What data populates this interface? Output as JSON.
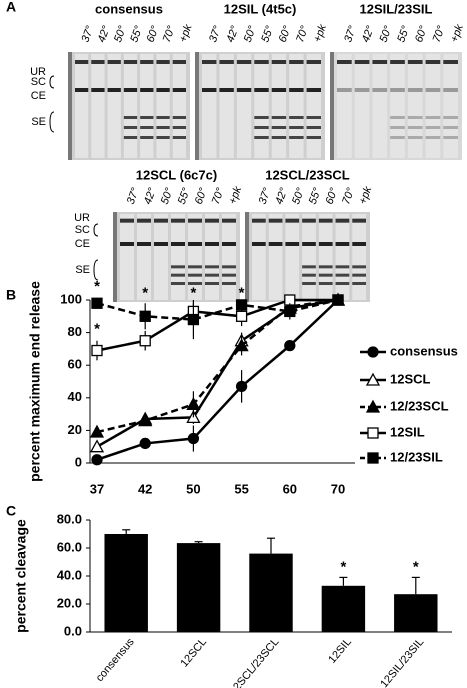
{
  "panel_labels": {
    "a": "A",
    "b": "B",
    "c": "C"
  },
  "gels": [
    {
      "title": "consensus",
      "lanes": [
        "37°",
        "42°",
        "50°",
        "55°",
        "60°",
        "70°",
        "+pk"
      ]
    },
    {
      "title": "12SIL (4t5c)",
      "lanes": [
        "37°",
        "42°",
        "50°",
        "55°",
        "60°",
        "70°",
        "+pk"
      ]
    },
    {
      "title": "12SIL/23SIL",
      "lanes": [
        "37°",
        "42°",
        "50°",
        "55°",
        "60°",
        "70°",
        "+pk"
      ]
    },
    {
      "title": "12SCL (6c7c)",
      "lanes": [
        "37°",
        "42°",
        "50°",
        "55°",
        "60°",
        "70°",
        "+pk"
      ]
    },
    {
      "title": "12SCL/23SCL",
      "lanes": [
        "37°",
        "42°",
        "50°",
        "55°",
        "60°",
        "70°",
        "+pk"
      ]
    }
  ],
  "row_labels": {
    "top": [
      "UR",
      "SC",
      "CE",
      "SE"
    ],
    "bottom": [
      "UR",
      "SC",
      "CE",
      "SE"
    ]
  },
  "chart_data": [
    {
      "type": "line",
      "ylabel": "percent maximum end release",
      "categories": [
        "37",
        "42",
        "50",
        "55",
        "60",
        "70"
      ],
      "ylim": [
        0,
        100
      ],
      "yticks": [
        0,
        20,
        40,
        60,
        80,
        100
      ],
      "series": [
        {
          "name": "consensus",
          "color": "#000000",
          "marker": "circle",
          "filled": true,
          "dashed": false,
          "values": [
            2,
            12,
            15,
            47,
            72,
            100
          ],
          "errors": [
            2,
            3,
            8,
            10,
            2,
            0
          ]
        },
        {
          "name": "12SCL",
          "color": "#000000",
          "marker": "triangle",
          "filled": false,
          "dashed": false,
          "values": [
            10,
            27,
            28,
            75,
            95,
            100
          ],
          "errors": [
            3,
            3,
            4,
            5,
            3,
            0
          ]
        },
        {
          "name": "12/23SCL",
          "color": "#000000",
          "marker": "triangle",
          "filled": true,
          "dashed": true,
          "values": [
            19,
            26,
            36,
            72,
            96,
            100
          ],
          "errors": [
            3,
            3,
            8,
            6,
            3,
            0
          ]
        },
        {
          "name": "12SIL",
          "color": "#000000",
          "marker": "square",
          "filled": false,
          "dashed": false,
          "values": [
            69,
            75,
            93,
            90,
            100,
            100
          ],
          "errors": [
            6,
            6,
            5,
            6,
            0,
            0
          ]
        },
        {
          "name": "12/23SIL",
          "color": "#000000",
          "marker": "square",
          "filled": true,
          "dashed": true,
          "values": [
            98,
            90,
            88,
            97,
            93,
            100
          ],
          "errors": [
            2,
            8,
            12,
            2,
            5,
            0
          ]
        }
      ],
      "annotations": [
        {
          "text": "*",
          "x": "37",
          "y": 108
        },
        {
          "text": "*",
          "x": "37",
          "y": 82
        },
        {
          "text": "*",
          "x": "42",
          "y": 104
        },
        {
          "text": "*",
          "x": "50",
          "y": 104
        },
        {
          "text": "*",
          "x": "55",
          "y": 104
        }
      ]
    },
    {
      "type": "bar",
      "ylabel": "percent cleavage",
      "color": "#000000",
      "categories": [
        "consensus",
        "12SCL",
        "12SCL/23SCL",
        "12SIL",
        "12SIL/23SIL"
      ],
      "values": [
        70,
        63.5,
        56,
        33,
        27
      ],
      "errors": [
        3,
        1,
        11,
        6,
        12
      ],
      "ylim": [
        0,
        80
      ],
      "yticks": [
        {
          "value": 0,
          "label": "0.0"
        },
        {
          "value": 20,
          "label": "20.0"
        },
        {
          "value": 40,
          "label": "40.0"
        },
        {
          "value": 60,
          "label": "60.0"
        },
        {
          "value": 80,
          "label": "80.0"
        }
      ],
      "annotations": [
        {
          "text": "*",
          "x": "12SIL",
          "y": 46
        },
        {
          "text": "*",
          "x": "12SIL/23SIL",
          "y": 46
        }
      ]
    }
  ]
}
